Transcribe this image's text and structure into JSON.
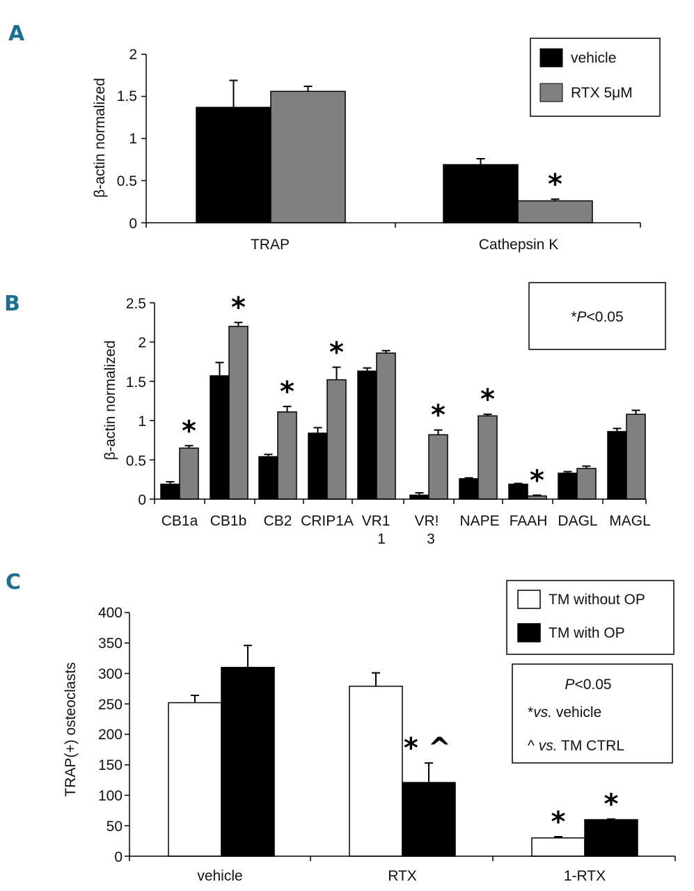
{
  "colors": {
    "vehicle": "#000000",
    "rtx": "#808080",
    "without_op": "#ffffff",
    "with_op": "#000000",
    "panel_letter": "#1a6f93"
  },
  "chart_data": [
    {
      "panel": "A",
      "type": "bar",
      "ylabel": "β-actin normalized",
      "ylim": [
        0,
        2
      ],
      "yticks": [
        "0",
        "0.5",
        "1",
        "1.5",
        "2"
      ],
      "categories": [
        "TRAP",
        "Cathepsin K"
      ],
      "series": [
        {
          "name": "vehicle",
          "values": [
            1.37,
            0.69
          ],
          "errors": [
            0.32,
            0.07
          ]
        },
        {
          "name": "RTX 5μM",
          "values": [
            1.56,
            0.26
          ],
          "errors": [
            0.06,
            0.02
          ]
        }
      ],
      "annotations": [
        {
          "text": "*",
          "category": 1,
          "series": 1
        }
      ],
      "legend": [
        "vehicle",
        "RTX 5μM"
      ],
      "legend_position": "top-right"
    },
    {
      "panel": "B",
      "type": "bar",
      "ylabel": "β-actin normalized",
      "ylim": [
        0,
        2.5
      ],
      "yticks": [
        "0",
        "0.5",
        "1",
        "1.5",
        "2",
        "2.5"
      ],
      "categories": [
        "CB1a",
        "CB1b",
        "CB2",
        "CRIP1A",
        "VR1 1",
        "VR! 3",
        "NAPE",
        "FAAH",
        "DAGL",
        "MAGL"
      ],
      "category_lines": [
        [
          "CB1a"
        ],
        [
          "CB1b"
        ],
        [
          "CB2"
        ],
        [
          "CRIP1A"
        ],
        [
          "VR1",
          "1"
        ],
        [
          "VR!",
          "3"
        ],
        [
          "NAPE"
        ],
        [
          "FAAH"
        ],
        [
          "DAGL"
        ],
        [
          "MAGL"
        ]
      ],
      "series": [
        {
          "name": "vehicle",
          "values": [
            0.19,
            1.57,
            0.54,
            0.84,
            1.63,
            0.05,
            0.26,
            0.19,
            0.33,
            0.86
          ],
          "errors": [
            0.03,
            0.17,
            0.03,
            0.07,
            0.04,
            0.03,
            0.01,
            0.01,
            0.02,
            0.04
          ]
        },
        {
          "name": "RTX 5μM",
          "values": [
            0.65,
            2.2,
            1.11,
            1.52,
            1.86,
            0.82,
            1.06,
            0.04,
            0.39,
            1.08
          ],
          "errors": [
            0.03,
            0.05,
            0.07,
            0.16,
            0.03,
            0.06,
            0.02,
            0.01,
            0.03,
            0.05
          ]
        }
      ],
      "annotations": [
        {
          "text": "*",
          "category": 0,
          "series": 1
        },
        {
          "text": "*",
          "category": 1,
          "series": 1
        },
        {
          "text": "*",
          "category": 2,
          "series": 1
        },
        {
          "text": "*",
          "category": 3,
          "series": 1
        },
        {
          "text": "*",
          "category": 5,
          "series": 1
        },
        {
          "text": "*",
          "category": 6,
          "series": 1
        },
        {
          "text": "*",
          "category": 7,
          "series": 1
        }
      ],
      "note_box": {
        "star": "*",
        "p": "P",
        "rest": "<0.05"
      }
    },
    {
      "panel": "C",
      "type": "bar",
      "ylabel": "TRAP(+) osteoclasts",
      "ylim": [
        0,
        400
      ],
      "yticks": [
        "0",
        "50",
        "100",
        "150",
        "200",
        "250",
        "300",
        "350",
        "400"
      ],
      "categories": [
        "vehicle",
        "RTX",
        "1-RTX"
      ],
      "series": [
        {
          "name": "TM without OP",
          "values": [
            252,
            279,
            30
          ],
          "errors": [
            12,
            22,
            2
          ]
        },
        {
          "name": "TM with OP",
          "values": [
            310,
            121,
            60
          ],
          "errors": [
            36,
            32,
            1
          ]
        }
      ],
      "annotations": [
        {
          "text": "*^",
          "category": 1,
          "series": 1
        },
        {
          "text": "*",
          "category": 2,
          "series": 0
        },
        {
          "text": "*",
          "category": 2,
          "series": 1
        }
      ],
      "legend": [
        "TM without OP",
        "TM with OP"
      ],
      "legend_position": "top-right",
      "stat_box": {
        "line1": {
          "p": "P",
          "rest": "<0.05"
        },
        "line2": {
          "mark": "*",
          "vs": "vs.",
          "rest": " vehicle"
        },
        "line3": {
          "mark": "^ ",
          "vs": "vs.",
          "rest": " TM CTRL"
        }
      }
    }
  ]
}
